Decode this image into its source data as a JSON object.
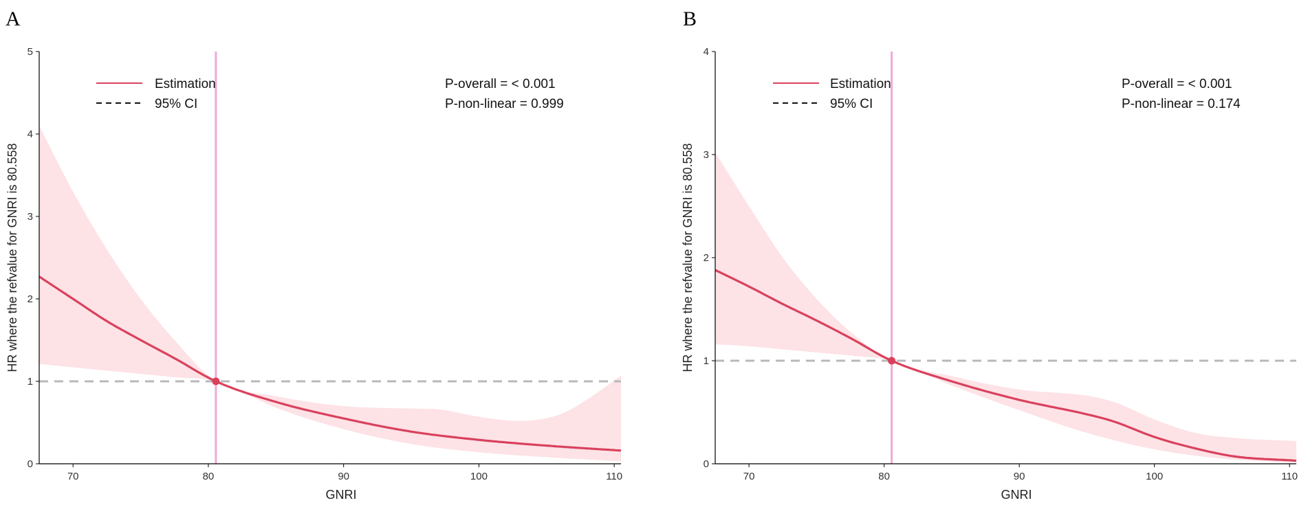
{
  "chart_data": [
    {
      "type": "line",
      "panel_label": "A",
      "xlabel": "GNRI",
      "ylabel": "HR where the refvalue for GNRI is 80.558",
      "xlim": [
        67.5,
        110.5
      ],
      "ylim": [
        0,
        5
      ],
      "xticks": [
        70,
        80,
        90,
        100,
        110
      ],
      "yticks": [
        0,
        1,
        2,
        3,
        4,
        5
      ],
      "ref_value": 80.558,
      "ref_hr": 1,
      "legend": {
        "position": "top-left",
        "estimation": "Estimation",
        "ci": "95% CI"
      },
      "stats": [
        "P-overall = < 0.001",
        "P-non-linear = 0.999"
      ],
      "series": [
        {
          "name": "Estimation",
          "x": [
            67.5,
            70,
            72.5,
            75,
            77.5,
            80.558,
            85,
            90,
            95,
            100,
            105,
            110.5
          ],
          "y": [
            2.27,
            2.0,
            1.73,
            1.5,
            1.28,
            1.0,
            0.75,
            0.55,
            0.39,
            0.29,
            0.22,
            0.16
          ]
        },
        {
          "name": "95% CI upper",
          "x": [
            67.5,
            70,
            72.5,
            75,
            77.5,
            80.558,
            85,
            90,
            95,
            97,
            100,
            103,
            106,
            108,
            110.5
          ],
          "y": [
            4.1,
            3.3,
            2.6,
            2.0,
            1.5,
            1.0,
            0.82,
            0.7,
            0.67,
            0.66,
            0.57,
            0.52,
            0.6,
            0.78,
            1.07
          ]
        },
        {
          "name": "95% CI lower",
          "x": [
            67.5,
            70,
            72.5,
            75,
            77.5,
            80.558,
            85,
            90,
            95,
            100,
            105,
            110.5
          ],
          "y": [
            1.21,
            1.17,
            1.13,
            1.09,
            1.05,
            1.0,
            0.68,
            0.42,
            0.24,
            0.14,
            0.08,
            0.03
          ]
        }
      ]
    },
    {
      "type": "line",
      "panel_label": "B",
      "xlabel": "GNRI",
      "ylabel": "HR where the refvalue for GNRI is 80.558",
      "xlim": [
        67.5,
        110.5
      ],
      "ylim": [
        0,
        4
      ],
      "xticks": [
        70,
        80,
        90,
        100,
        110
      ],
      "yticks": [
        0,
        1,
        2,
        3,
        4
      ],
      "ref_value": 80.558,
      "ref_hr": 1,
      "legend": {
        "position": "top-left",
        "estimation": "Estimation",
        "ci": "95% CI"
      },
      "stats": [
        "P-overall = < 0.001",
        "P-non-linear = 0.174"
      ],
      "series": [
        {
          "name": "Estimation",
          "x": [
            67.5,
            70,
            72.5,
            75,
            77.5,
            80.558,
            85,
            90,
            95,
            97,
            100,
            103,
            106,
            110.5
          ],
          "y": [
            1.88,
            1.72,
            1.55,
            1.39,
            1.22,
            1.0,
            0.8,
            0.62,
            0.48,
            0.41,
            0.26,
            0.15,
            0.07,
            0.03
          ]
        },
        {
          "name": "95% CI upper",
          "x": [
            67.5,
            70,
            72.5,
            75,
            77.5,
            80.558,
            85,
            90,
            95,
            97,
            100,
            103,
            106,
            110.5
          ],
          "y": [
            3.02,
            2.5,
            2.0,
            1.6,
            1.28,
            1.0,
            0.85,
            0.72,
            0.66,
            0.6,
            0.43,
            0.3,
            0.25,
            0.22
          ]
        },
        {
          "name": "95% CI lower",
          "x": [
            67.5,
            70,
            72.5,
            75,
            77.5,
            80.558,
            85,
            90,
            95,
            100,
            105,
            110.5
          ],
          "y": [
            1.16,
            1.14,
            1.11,
            1.08,
            1.05,
            1.0,
            0.76,
            0.52,
            0.3,
            0.14,
            0.05,
            0.01
          ]
        }
      ]
    }
  ],
  "colors": {
    "estimation": "#d9415c",
    "ci_fill": "#fde2e6",
    "reference_vertical": "#f0a8d8",
    "reference_horizontal": "#b8b8b8",
    "axis": "#000000"
  }
}
